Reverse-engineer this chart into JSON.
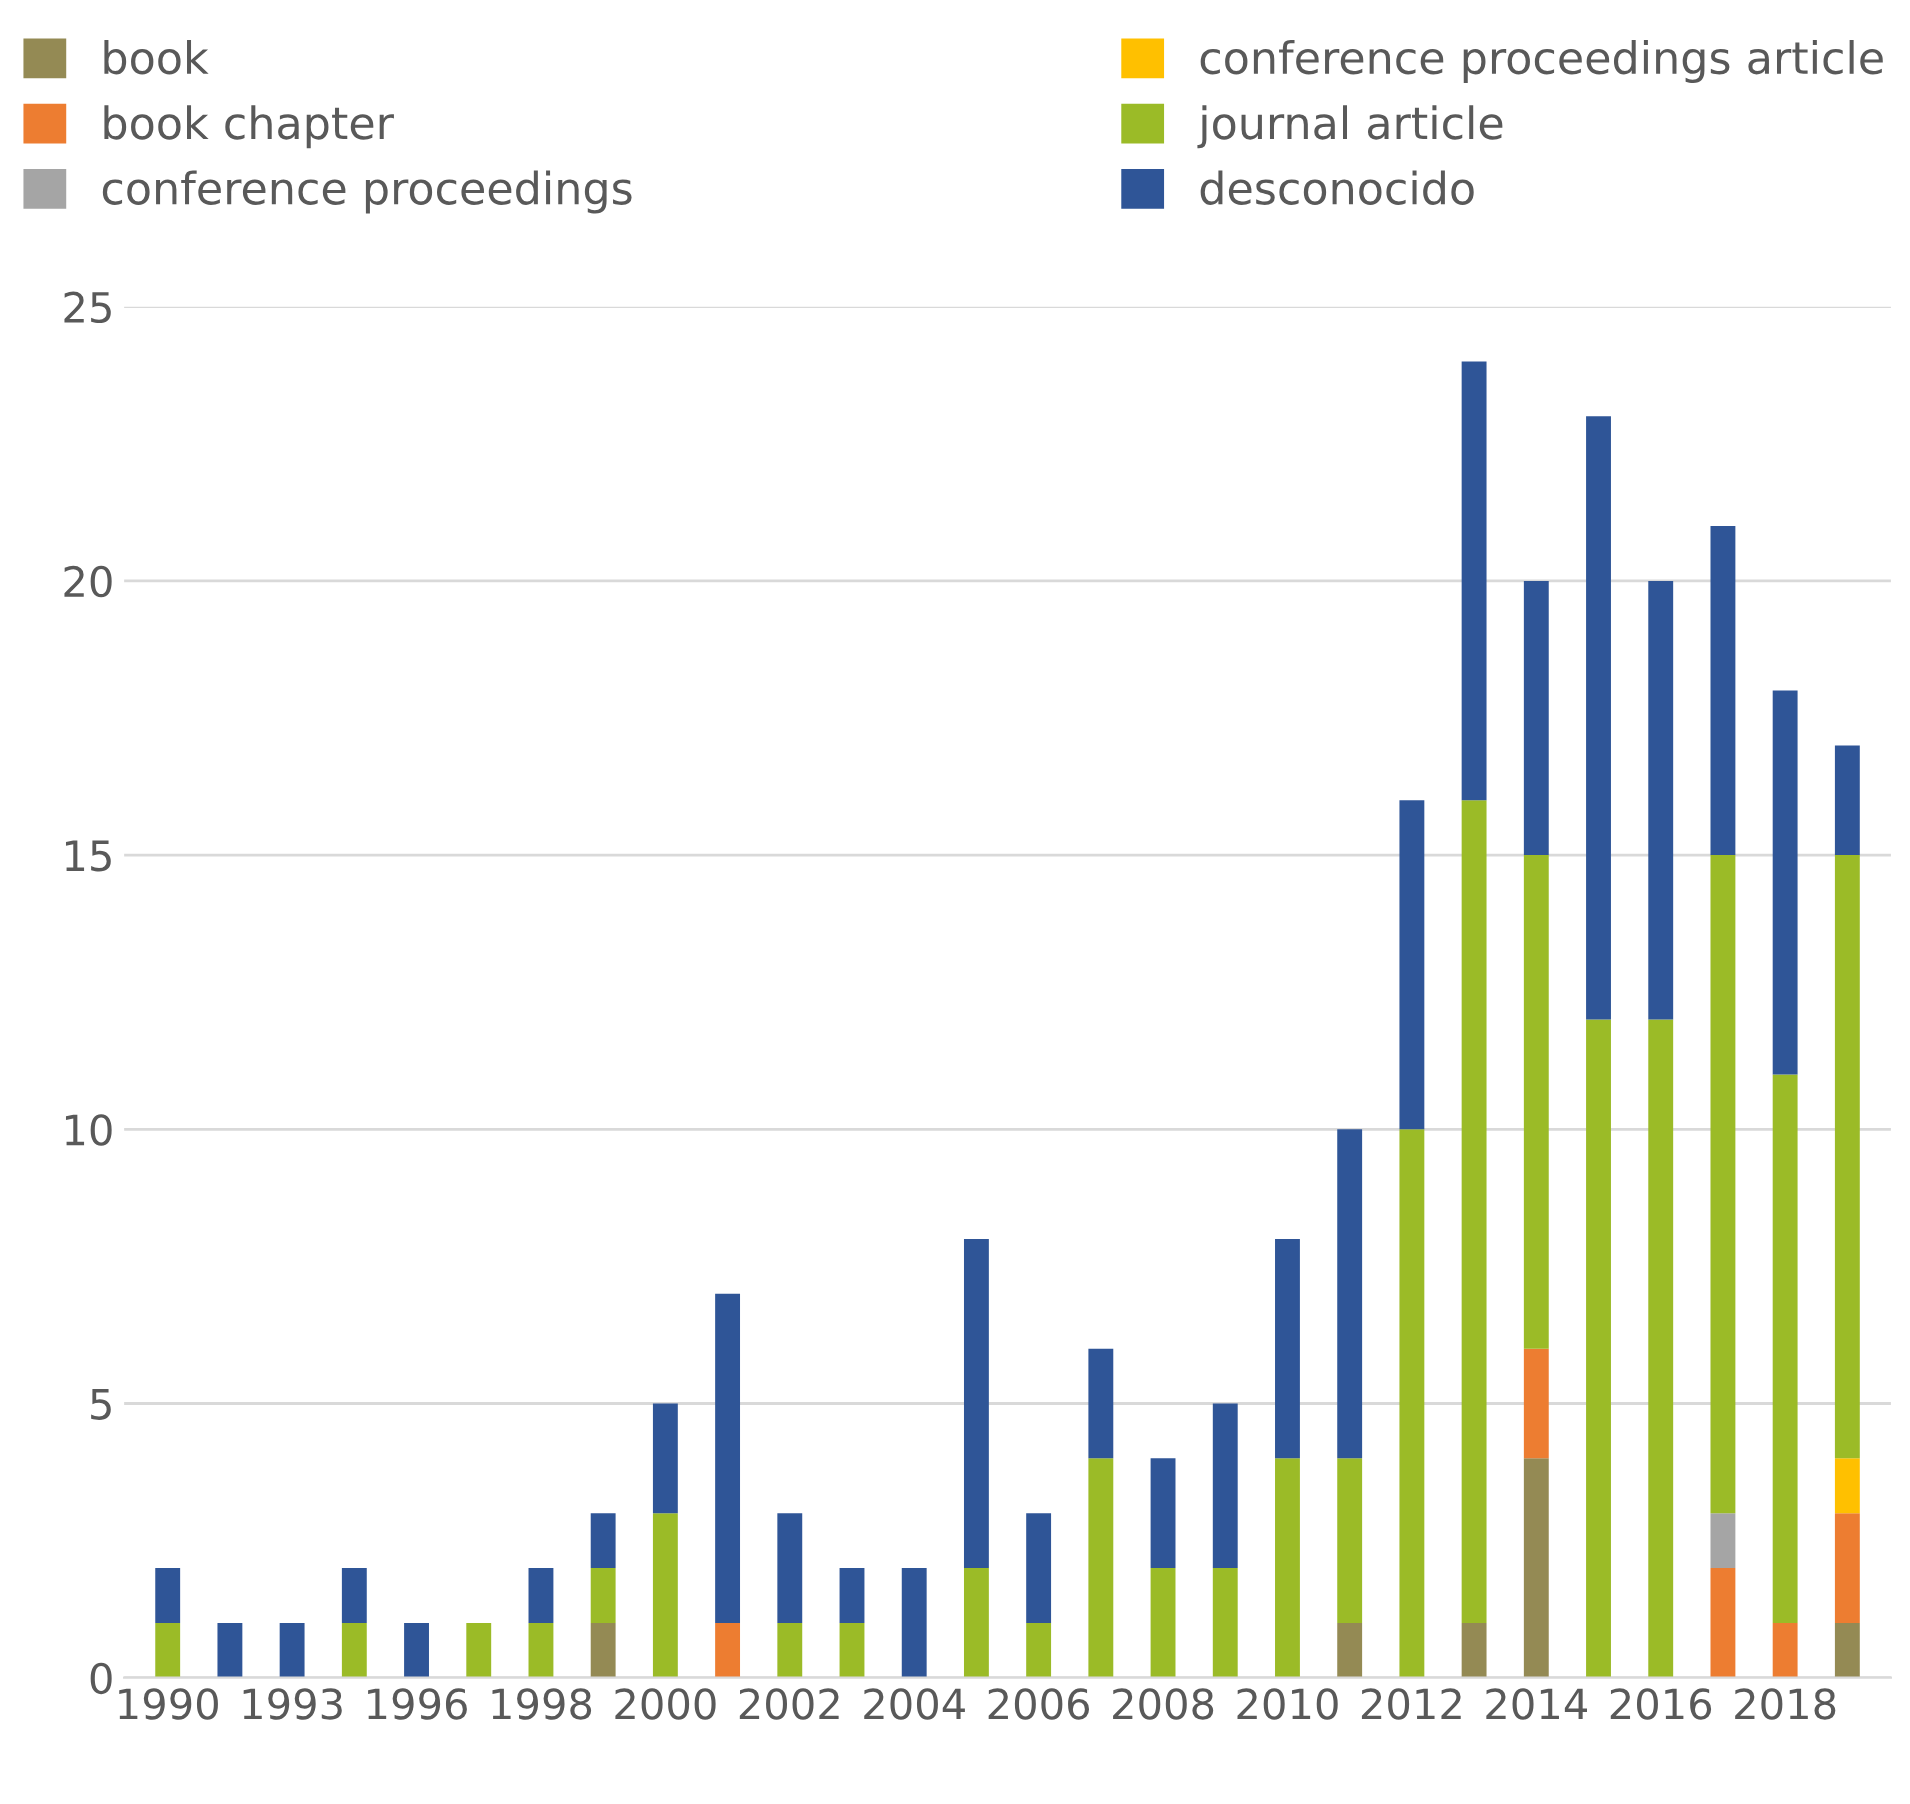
{
  "chart_data": {
    "type": "bar",
    "stacked": true,
    "categories": [
      "1990",
      null,
      "1993",
      null,
      "1996",
      null,
      "1998",
      null,
      "2000",
      null,
      "2002",
      null,
      "2004",
      null,
      "2006",
      null,
      "2008",
      null,
      "2010",
      null,
      "2012",
      null,
      "2014",
      null,
      "2016",
      null,
      "2018",
      null
    ],
    "series": [
      {
        "name": "book",
        "color": "#948a54",
        "values": [
          0,
          0,
          0,
          0,
          0,
          0,
          0,
          1,
          0,
          0,
          0,
          0,
          0,
          0,
          0,
          0,
          0,
          0,
          0,
          1,
          0,
          1,
          4,
          0,
          0,
          0,
          0,
          1
        ]
      },
      {
        "name": "book chapter",
        "color": "#ed7d31",
        "values": [
          0,
          0,
          0,
          0,
          0,
          0,
          0,
          0,
          0,
          1,
          0,
          0,
          0,
          0,
          0,
          0,
          0,
          0,
          0,
          0,
          0,
          0,
          2,
          0,
          0,
          2,
          1,
          2
        ]
      },
      {
        "name": "conference proceedings",
        "color": "#a5a5a5",
        "values": [
          0,
          0,
          0,
          0,
          0,
          0,
          0,
          0,
          0,
          0,
          0,
          0,
          0,
          0,
          0,
          0,
          0,
          0,
          0,
          0,
          0,
          0,
          0,
          0,
          0,
          1,
          0,
          0
        ]
      },
      {
        "name": "conference proceedings article",
        "color": "#ffc000",
        "values": [
          0,
          0,
          0,
          0,
          0,
          0,
          0,
          0,
          0,
          0,
          0,
          0,
          0,
          0,
          0,
          0,
          0,
          0,
          0,
          0,
          0,
          0,
          0,
          0,
          0,
          0,
          0,
          1
        ]
      },
      {
        "name": "journal article",
        "color": "#9bbb27",
        "values": [
          1,
          0,
          0,
          1,
          0,
          1,
          1,
          1,
          3,
          0,
          1,
          1,
          0,
          2,
          1,
          4,
          2,
          2,
          4,
          3,
          10,
          15,
          9,
          12,
          12,
          12,
          10,
          11
        ]
      },
      {
        "name": "desconocido",
        "color": "#2f5597",
        "values": [
          1,
          1,
          1,
          1,
          1,
          0,
          1,
          1,
          2,
          6,
          2,
          1,
          2,
          6,
          2,
          2,
          2,
          3,
          4,
          6,
          6,
          8,
          5,
          11,
          8,
          6,
          7,
          2
        ]
      }
    ],
    "ylim": [
      0,
      25
    ],
    "yticks": [
      0,
      5,
      10,
      15,
      20,
      25
    ],
    "grid": "y",
    "legend": "top"
  }
}
